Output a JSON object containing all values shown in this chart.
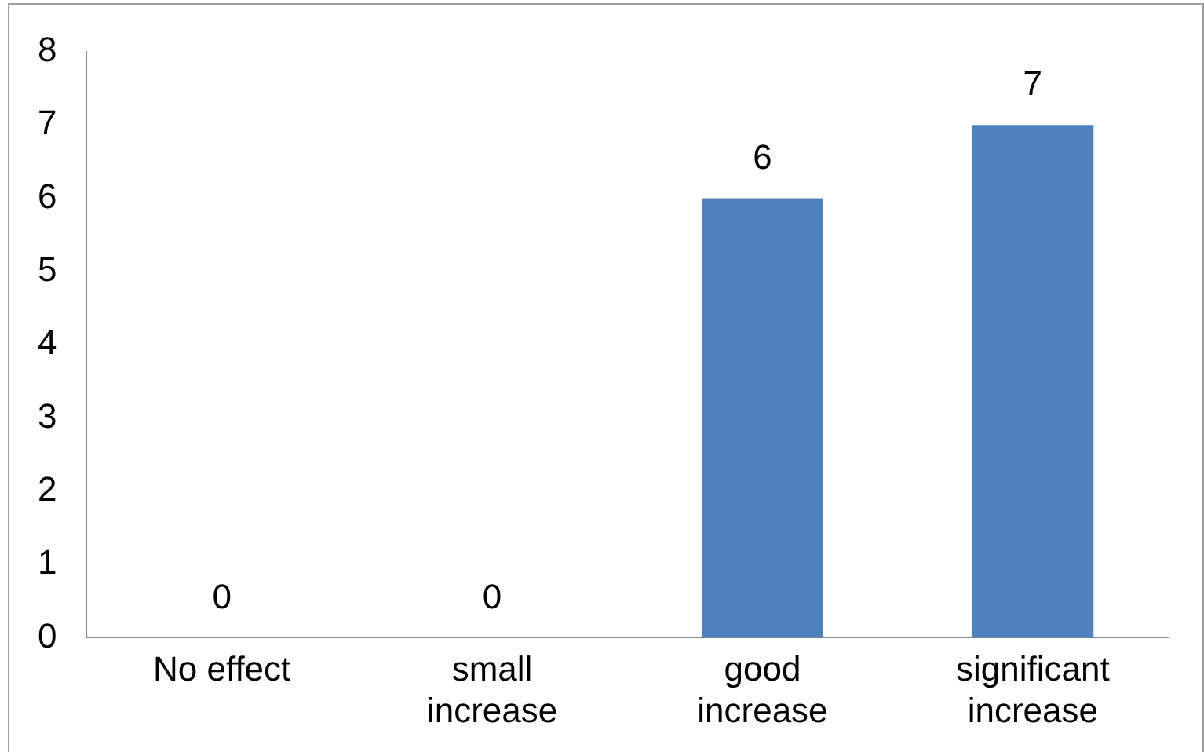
{
  "chart_data": {
    "type": "bar",
    "categories": [
      "No effect",
      "small increase",
      "good increase",
      "significant increase"
    ],
    "values": [
      0,
      0,
      6,
      7
    ],
    "color": "#4f81bd",
    "ylim": [
      0,
      8
    ],
    "yticks": [
      0,
      1,
      2,
      3,
      4,
      5,
      6,
      7,
      8
    ],
    "grid": false,
    "legend": false,
    "data_labels": true
  }
}
